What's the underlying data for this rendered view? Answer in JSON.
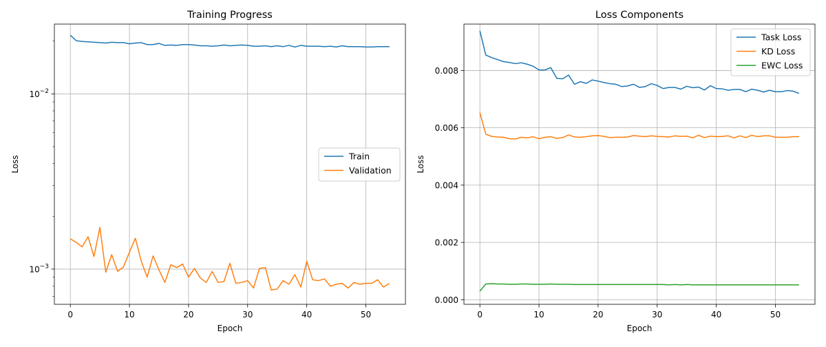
{
  "chart_data": [
    {
      "type": "line",
      "title": "Training Progress",
      "xlabel": "Epoch",
      "ylabel": "Loss",
      "yscale": "log",
      "xlim": [
        -2.7,
        56.7
      ],
      "ylim": [
        0.00063,
        0.025
      ],
      "xticks": [
        0,
        10,
        20,
        30,
        40,
        50
      ],
      "xtick_labels": [
        "0",
        "10",
        "20",
        "30",
        "40",
        "50"
      ],
      "yticks": [
        0.01,
        0.001
      ],
      "ytick_labels": [
        {
          "base": "10",
          "exp": "−2"
        },
        {
          "base": "10",
          "exp": "−3"
        }
      ],
      "grid": true,
      "legend_position": "center-right",
      "series": [
        {
          "name": "Train",
          "color": "#1f77b4",
          "x": [
            0,
            1,
            2,
            3,
            4,
            5,
            6,
            7,
            8,
            9,
            10,
            11,
            12,
            13,
            14,
            15,
            16,
            17,
            18,
            19,
            20,
            21,
            22,
            23,
            24,
            25,
            26,
            27,
            28,
            29,
            30,
            31,
            32,
            33,
            34,
            35,
            36,
            37,
            38,
            39,
            40,
            41,
            42,
            43,
            44,
            45,
            46,
            47,
            48,
            49,
            50,
            51,
            52,
            53,
            54
          ],
          "values": [
            0.0216,
            0.0201,
            0.0199,
            0.0198,
            0.0197,
            0.0196,
            0.0195,
            0.0197,
            0.0196,
            0.0196,
            0.0193,
            0.0195,
            0.0196,
            0.0191,
            0.0191,
            0.0194,
            0.0189,
            0.019,
            0.0189,
            0.0191,
            0.0191,
            0.019,
            0.0188,
            0.0188,
            0.0187,
            0.0188,
            0.019,
            0.0188,
            0.0189,
            0.019,
            0.0189,
            0.0187,
            0.0187,
            0.0188,
            0.0186,
            0.0188,
            0.0186,
            0.0189,
            0.0185,
            0.0189,
            0.0187,
            0.0187,
            0.0187,
            0.0186,
            0.0187,
            0.0185,
            0.0188,
            0.0186,
            0.0186,
            0.0186,
            0.0185,
            0.0185,
            0.0186,
            0.0186,
            0.0186
          ]
        },
        {
          "name": "Validation",
          "color": "#ff7f0e",
          "x": [
            0,
            1,
            2,
            3,
            4,
            5,
            6,
            7,
            8,
            9,
            10,
            11,
            12,
            13,
            14,
            15,
            16,
            17,
            18,
            19,
            20,
            21,
            22,
            23,
            24,
            25,
            26,
            27,
            28,
            29,
            30,
            31,
            32,
            33,
            34,
            35,
            36,
            37,
            38,
            39,
            40,
            41,
            42,
            43,
            44,
            45,
            46,
            47,
            48,
            49,
            50,
            51,
            52,
            53,
            54
          ],
          "values": [
            0.00149,
            0.00142,
            0.00134,
            0.00153,
            0.00118,
            0.00173,
            0.00096,
            0.00121,
            0.00097,
            0.00103,
            0.00125,
            0.0015,
            0.00111,
            0.0009,
            0.00119,
            0.00099,
            0.00084,
            0.00106,
            0.00102,
            0.00107,
            0.0009,
            0.00101,
            0.00089,
            0.00084,
            0.00097,
            0.00084,
            0.00085,
            0.00108,
            0.00083,
            0.00084,
            0.00086,
            0.00078,
            0.00101,
            0.00102,
            0.00076,
            0.00077,
            0.00086,
            0.00082,
            0.00093,
            0.00079,
            0.00111,
            0.00087,
            0.00086,
            0.00088,
            0.0008,
            0.00082,
            0.00083,
            0.00078,
            0.00084,
            0.00082,
            0.00083,
            0.00083,
            0.00087,
            0.00079,
            0.00083
          ]
        }
      ]
    },
    {
      "type": "line",
      "title": "Loss Components",
      "xlabel": "Epoch",
      "ylabel": "Loss",
      "yscale": "linear",
      "xlim": [
        -2.7,
        56.7
      ],
      "ylim": [
        -0.00016,
        0.00962
      ],
      "xticks": [
        0,
        10,
        20,
        30,
        40,
        50
      ],
      "xtick_labels": [
        "0",
        "10",
        "20",
        "30",
        "40",
        "50"
      ],
      "yticks": [
        0,
        0.002,
        0.004,
        0.006,
        0.008
      ],
      "ytick_labels": [
        "0.000",
        "0.002",
        "0.004",
        "0.006",
        "0.008"
      ],
      "grid": true,
      "legend_position": "top-right",
      "series": [
        {
          "name": "Task Loss",
          "color": "#1f77b4",
          "x": [
            0,
            1,
            2,
            3,
            4,
            5,
            6,
            7,
            8,
            9,
            10,
            11,
            12,
            13,
            14,
            15,
            16,
            17,
            18,
            19,
            20,
            21,
            22,
            23,
            24,
            25,
            26,
            27,
            28,
            29,
            30,
            31,
            32,
            33,
            34,
            35,
            36,
            37,
            38,
            39,
            40,
            41,
            42,
            43,
            44,
            45,
            46,
            47,
            48,
            49,
            50,
            51,
            52,
            53,
            54
          ],
          "values": [
            0.00938,
            0.00854,
            0.00845,
            0.00838,
            0.00831,
            0.00828,
            0.00824,
            0.00827,
            0.00822,
            0.00815,
            0.00802,
            0.00802,
            0.0081,
            0.00773,
            0.00771,
            0.00784,
            0.00752,
            0.00761,
            0.00755,
            0.00767,
            0.00763,
            0.00758,
            0.00754,
            0.00752,
            0.00744,
            0.00746,
            0.00752,
            0.00741,
            0.00744,
            0.00754,
            0.00748,
            0.00737,
            0.00741,
            0.00741,
            0.00735,
            0.00745,
            0.0074,
            0.00742,
            0.00732,
            0.00747,
            0.00737,
            0.00736,
            0.00731,
            0.00734,
            0.00734,
            0.00726,
            0.00735,
            0.00731,
            0.00725,
            0.00731,
            0.00726,
            0.00726,
            0.0073,
            0.00728,
            0.0072
          ]
        },
        {
          "name": "KD Loss",
          "color": "#ff7f0e",
          "x": [
            0,
            1,
            2,
            3,
            4,
            5,
            6,
            7,
            8,
            9,
            10,
            11,
            12,
            13,
            14,
            15,
            16,
            17,
            18,
            19,
            20,
            21,
            22,
            23,
            24,
            25,
            26,
            27,
            28,
            29,
            30,
            31,
            32,
            33,
            34,
            35,
            36,
            37,
            38,
            39,
            40,
            41,
            42,
            43,
            44,
            45,
            46,
            47,
            48,
            49,
            50,
            51,
            52,
            53,
            54
          ],
          "values": [
            0.00653,
            0.00578,
            0.0057,
            0.00568,
            0.00567,
            0.00562,
            0.00561,
            0.00567,
            0.00565,
            0.00569,
            0.00562,
            0.00567,
            0.00569,
            0.00563,
            0.00566,
            0.00575,
            0.00568,
            0.00567,
            0.00569,
            0.00572,
            0.00573,
            0.0057,
            0.00566,
            0.00567,
            0.00567,
            0.00568,
            0.00573,
            0.00571,
            0.00569,
            0.00572,
            0.0057,
            0.00569,
            0.00568,
            0.00572,
            0.0057,
            0.00571,
            0.00565,
            0.00574,
            0.00566,
            0.00571,
            0.00569,
            0.0057,
            0.00572,
            0.00565,
            0.00572,
            0.00566,
            0.00574,
            0.00569,
            0.00572,
            0.00572,
            0.00567,
            0.00567,
            0.00567,
            0.00569,
            0.00569
          ]
        },
        {
          "name": "EWC Loss",
          "color": "#2ca02c",
          "x": [
            0,
            1,
            2,
            3,
            4,
            5,
            6,
            7,
            8,
            9,
            10,
            11,
            12,
            13,
            14,
            15,
            16,
            17,
            18,
            19,
            20,
            21,
            22,
            23,
            24,
            25,
            26,
            27,
            28,
            29,
            30,
            31,
            32,
            33,
            34,
            35,
            36,
            37,
            38,
            39,
            40,
            41,
            42,
            43,
            44,
            45,
            46,
            47,
            48,
            49,
            50,
            51,
            52,
            53,
            54
          ],
          "values": [
            0.0003,
            0.00055,
            0.00056,
            0.00055,
            0.00055,
            0.00054,
            0.00054,
            0.00055,
            0.00055,
            0.00054,
            0.00054,
            0.00054,
            0.00055,
            0.00054,
            0.00054,
            0.00054,
            0.00053,
            0.00053,
            0.00053,
            0.00053,
            0.00053,
            0.00053,
            0.00053,
            0.00053,
            0.00053,
            0.00053,
            0.00053,
            0.00053,
            0.00053,
            0.00053,
            0.00053,
            0.00053,
            0.00052,
            0.00053,
            0.00052,
            0.00053,
            0.00052,
            0.00052,
            0.00052,
            0.00052,
            0.00052,
            0.00052,
            0.00052,
            0.00052,
            0.00052,
            0.00052,
            0.00052,
            0.00052,
            0.00052,
            0.00052,
            0.00052,
            0.00052,
            0.00052,
            0.00052,
            0.00052
          ]
        }
      ]
    }
  ]
}
